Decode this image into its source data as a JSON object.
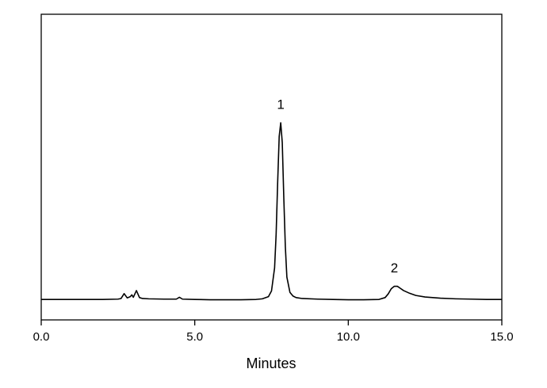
{
  "chart_data": {
    "type": "line",
    "xlabel": "Minutes",
    "xlim": [
      0,
      15
    ],
    "ylim": [
      0,
      100
    ],
    "xticks": [
      {
        "value": 0,
        "label": "0.0"
      },
      {
        "value": 5,
        "label": "5.0"
      },
      {
        "value": 10,
        "label": "10.0"
      },
      {
        "value": 15,
        "label": "15.0"
      }
    ],
    "x": [
      0,
      0.5,
      1,
      1.5,
      2,
      2.5,
      2.6,
      2.7,
      2.8,
      2.9,
      2.95,
      3.0,
      3.1,
      3.2,
      3.3,
      3.5,
      4.0,
      4.4,
      4.5,
      4.6,
      5.0,
      5.5,
      6.0,
      6.5,
      7.0,
      7.2,
      7.4,
      7.5,
      7.6,
      7.65,
      7.7,
      7.75,
      7.8,
      7.85,
      7.9,
      7.95,
      8.0,
      8.1,
      8.2,
      8.3,
      8.5,
      9.0,
      9.5,
      10.0,
      10.5,
      11.0,
      11.2,
      11.3,
      11.4,
      11.5,
      11.6,
      11.7,
      11.8,
      12.0,
      12.2,
      12.5,
      13.0,
      13.5,
      14.0,
      14.5,
      15.0
    ],
    "series": [
      {
        "color": "#000000",
        "values": [
          6.7,
          6.7,
          6.7,
          6.7,
          6.7,
          6.8,
          7.0,
          8.6,
          7.2,
          7.6,
          8.2,
          7.4,
          9.6,
          7.3,
          7.0,
          6.9,
          6.8,
          6.8,
          7.4,
          6.8,
          6.7,
          6.6,
          6.6,
          6.6,
          6.7,
          6.9,
          7.6,
          9.5,
          17,
          28,
          45,
          60,
          64.5,
          58,
          40,
          24,
          14,
          9,
          7.8,
          7.3,
          7.0,
          6.8,
          6.7,
          6.6,
          6.6,
          6.7,
          7.3,
          8.5,
          10.2,
          11.0,
          11.0,
          10.3,
          9.6,
          8.7,
          8.0,
          7.5,
          7.1,
          6.9,
          6.8,
          6.7,
          6.7
        ]
      }
    ],
    "annotations": [
      {
        "text": "1",
        "x": 7.8
      },
      {
        "text": "2",
        "x": 11.5
      }
    ]
  }
}
